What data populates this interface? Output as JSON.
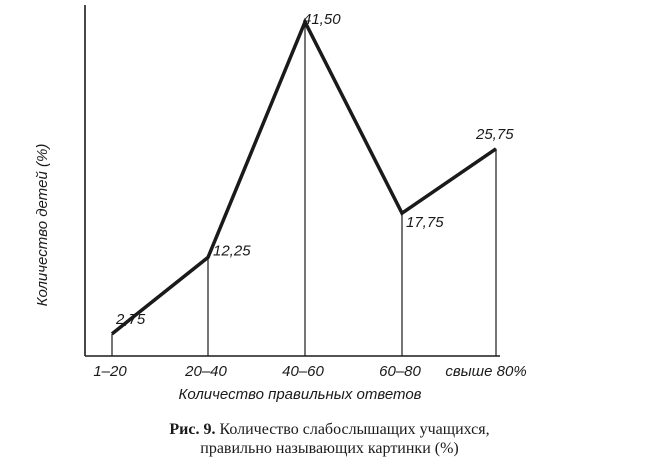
{
  "chart_data": {
    "type": "line",
    "categories": [
      "1–20",
      "20–40",
      "40–60",
      "60–80",
      "свыше 80%"
    ],
    "values": [
      2.75,
      12.25,
      41.5,
      17.75,
      25.75
    ],
    "data_labels": [
      "2,75",
      "12,25",
      "41,50",
      "17,75",
      "25,75"
    ],
    "xlabel": "Количество правильных ответов",
    "ylabel": "Количество детей (%)",
    "ylim": [
      0,
      41.5
    ],
    "grid": false,
    "line_color": "#1a1a1a"
  },
  "caption": {
    "figure_label": "Рис. 9.",
    "line1": "Количество слабослышащих учащихся,",
    "line2": "правильно называющих картинки (%)"
  }
}
